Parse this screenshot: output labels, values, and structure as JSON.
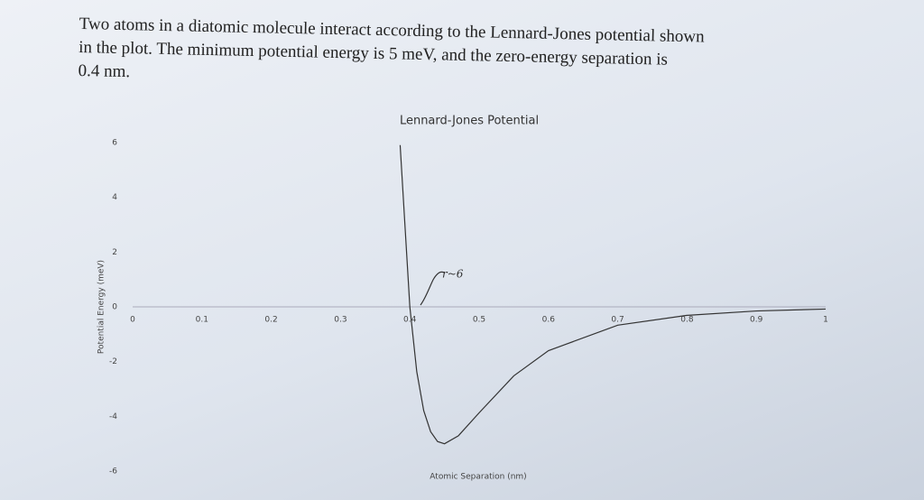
{
  "problem": {
    "lines": [
      "Two atoms in a diatomic molecule interact according to the Lennard-Jones potential shown",
      "in the plot. The minimum potential energy is 5 meV, and the zero-energy separation is",
      "0.4 nm."
    ]
  },
  "chart_data": {
    "type": "line",
    "title": "Lennard-Jones Potential",
    "x_label": "Atomic Separation (nm)",
    "y_label": "Potential Energy (meV)",
    "x": [
      0.386,
      0.4,
      0.41,
      0.42,
      0.43,
      0.44,
      0.45,
      0.47,
      0.5,
      0.55,
      0.6,
      0.7,
      0.8,
      0.9,
      1.0
    ],
    "values": [
      5.91,
      0,
      -2.37,
      -3.79,
      -4.56,
      -4.92,
      -5.0,
      -4.71,
      -3.87,
      -2.52,
      -1.6,
      -0.67,
      -0.31,
      -0.15,
      -0.08
    ],
    "color": "#333333",
    "xlim": [
      0,
      1
    ],
    "xticks": [
      0,
      0.1,
      0.2,
      0.3,
      0.4,
      0.5,
      0.6,
      0.7,
      0.8,
      0.9,
      1
    ],
    "ylim": [
      -6,
      6
    ],
    "yticks": [
      6,
      4,
      2,
      0,
      -2,
      -4,
      -6
    ],
    "annotation": "r~6"
  }
}
